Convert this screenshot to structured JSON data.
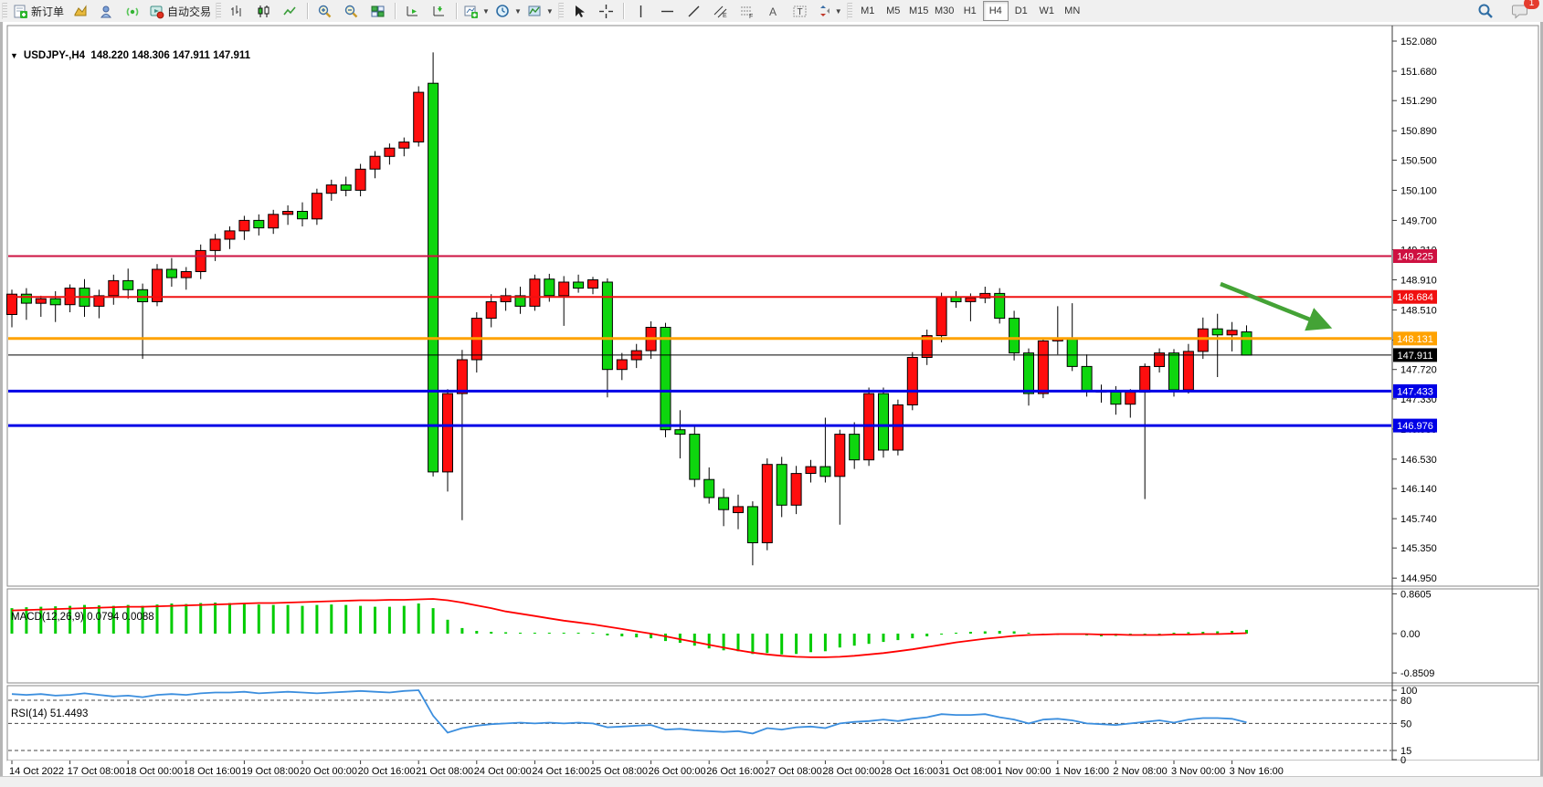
{
  "toolbar": {
    "new_order_label": "新订单",
    "autotrade_label": "自动交易",
    "timeframes": [
      "M1",
      "M5",
      "M15",
      "M30",
      "H1",
      "H4",
      "D1",
      "W1",
      "MN"
    ],
    "active_timeframe": "H4",
    "notification_count": "1"
  },
  "chart": {
    "symbol_period": "USDJPY-,H4",
    "ohlc": "148.220 148.306 147.911 147.911"
  },
  "chart_data": {
    "type": "candlestick",
    "symbol": "USDJPY-",
    "timeframe": "H4",
    "current": {
      "open": 148.22,
      "high": 148.306,
      "low": 147.911,
      "close": 147.911
    },
    "colors": {
      "candle_up": "#FF0E0E",
      "candle_down": "#0ED60E",
      "wick": "#000000",
      "macd_hist": "#00CC00",
      "macd_signal": "#FF0000",
      "rsi_line": "#3B8EDE",
      "arrow": "#44A336"
    },
    "price_axis_ticks": [
      "152.080",
      "151.680",
      "151.290",
      "150.890",
      "150.500",
      "150.100",
      "149.700",
      "149.310",
      "148.910",
      "148.510",
      "148.110",
      "147.720",
      "147.330",
      "146.930",
      "146.530",
      "146.140",
      "145.740",
      "145.350",
      "144.950"
    ],
    "hlines": [
      {
        "price": 149.225,
        "label": "149.225",
        "color": "#CE1141",
        "width": 2
      },
      {
        "price": 148.684,
        "label": "148.684",
        "color": "#F01010",
        "width": 2
      },
      {
        "price": 148.131,
        "label": "148.131",
        "color": "#FFA200",
        "width": 3
      },
      {
        "price": 147.911,
        "label": "147.911",
        "color": "#000000",
        "width": 1
      },
      {
        "price": 147.433,
        "label": "147.433",
        "color": "#0000E6",
        "width": 3
      },
      {
        "price": 146.976,
        "label": "146.976",
        "color": "#0000E6",
        "width": 3
      }
    ],
    "candles": [
      [
        148.45,
        148.78,
        148.28,
        148.72
      ],
      [
        148.72,
        148.8,
        148.38,
        148.6
      ],
      [
        148.6,
        148.7,
        148.42,
        148.66
      ],
      [
        148.66,
        148.76,
        148.35,
        148.58
      ],
      [
        148.58,
        148.85,
        148.48,
        148.8
      ],
      [
        148.8,
        148.92,
        148.42,
        148.56
      ],
      [
        148.56,
        148.78,
        148.4,
        148.7
      ],
      [
        148.7,
        148.98,
        148.58,
        148.9
      ],
      [
        148.9,
        149.06,
        148.66,
        148.78
      ],
      [
        148.78,
        148.86,
        147.86,
        148.62
      ],
      [
        148.62,
        149.12,
        148.56,
        149.05
      ],
      [
        149.05,
        149.2,
        148.82,
        148.94
      ],
      [
        148.94,
        149.08,
        148.78,
        149.02
      ],
      [
        149.02,
        149.38,
        148.92,
        149.3
      ],
      [
        149.3,
        149.52,
        149.16,
        149.45
      ],
      [
        149.45,
        149.62,
        149.32,
        149.56
      ],
      [
        149.56,
        149.76,
        149.44,
        149.7
      ],
      [
        149.7,
        149.78,
        149.5,
        149.6
      ],
      [
        149.6,
        149.84,
        149.52,
        149.78
      ],
      [
        149.78,
        149.9,
        149.64,
        149.82
      ],
      [
        149.82,
        149.94,
        149.62,
        149.72
      ],
      [
        149.72,
        150.12,
        149.64,
        150.06
      ],
      [
        150.06,
        150.24,
        149.96,
        150.17
      ],
      [
        150.17,
        150.28,
        150.02,
        150.1
      ],
      [
        150.1,
        150.45,
        150.02,
        150.38
      ],
      [
        150.38,
        150.62,
        150.26,
        150.55
      ],
      [
        150.55,
        150.72,
        150.44,
        150.66
      ],
      [
        150.66,
        150.8,
        150.55,
        150.74
      ],
      [
        150.74,
        151.48,
        150.68,
        151.4
      ],
      [
        151.52,
        151.93,
        146.3,
        146.36
      ],
      [
        146.36,
        147.46,
        146.1,
        147.4
      ],
      [
        147.4,
        147.98,
        145.72,
        147.85
      ],
      [
        147.85,
        148.48,
        147.68,
        148.4
      ],
      [
        148.4,
        148.72,
        148.28,
        148.62
      ],
      [
        148.62,
        148.8,
        148.5,
        148.7
      ],
      [
        148.7,
        148.82,
        148.46,
        148.56
      ],
      [
        148.56,
        148.98,
        148.5,
        148.92
      ],
      [
        148.92,
        148.99,
        148.62,
        148.7
      ],
      [
        148.7,
        148.96,
        148.3,
        148.88
      ],
      [
        148.88,
        148.98,
        148.74,
        148.8
      ],
      [
        148.8,
        148.95,
        148.72,
        148.91
      ],
      [
        148.88,
        148.93,
        147.35,
        147.72
      ],
      [
        147.72,
        147.94,
        147.58,
        147.85
      ],
      [
        147.85,
        148.06,
        147.74,
        147.97
      ],
      [
        147.97,
        148.36,
        147.86,
        148.28
      ],
      [
        148.28,
        148.34,
        146.82,
        146.92
      ],
      [
        146.92,
        147.18,
        146.54,
        146.86
      ],
      [
        146.86,
        146.96,
        146.16,
        146.26
      ],
      [
        146.26,
        146.42,
        145.94,
        146.02
      ],
      [
        146.02,
        146.14,
        145.64,
        145.86
      ],
      [
        145.82,
        146.06,
        145.6,
        145.9
      ],
      [
        145.9,
        145.97,
        145.12,
        145.42
      ],
      [
        145.42,
        146.54,
        145.32,
        146.46
      ],
      [
        146.46,
        146.56,
        145.76,
        145.92
      ],
      [
        145.92,
        146.44,
        145.8,
        146.34
      ],
      [
        146.34,
        146.52,
        146.22,
        146.43
      ],
      [
        146.43,
        147.08,
        146.22,
        146.3
      ],
      [
        146.3,
        146.92,
        145.66,
        146.86
      ],
      [
        146.86,
        147.02,
        146.4,
        146.52
      ],
      [
        146.52,
        147.48,
        146.44,
        147.4
      ],
      [
        147.4,
        147.48,
        146.55,
        146.65
      ],
      [
        146.65,
        147.32,
        146.58,
        147.25
      ],
      [
        147.25,
        147.95,
        147.18,
        147.88
      ],
      [
        147.88,
        148.25,
        147.78,
        148.17
      ],
      [
        148.17,
        148.74,
        148.08,
        148.68
      ],
      [
        148.68,
        148.76,
        148.54,
        148.62
      ],
      [
        148.62,
        148.73,
        148.36,
        148.67
      ],
      [
        148.67,
        148.82,
        148.6,
        148.73
      ],
      [
        148.73,
        148.8,
        148.33,
        148.4
      ],
      [
        148.4,
        148.5,
        147.84,
        147.94
      ],
      [
        147.94,
        148.0,
        147.24,
        147.4
      ],
      [
        147.4,
        148.14,
        147.34,
        148.1
      ],
      [
        148.1,
        148.56,
        147.92,
        148.14
      ],
      [
        148.14,
        148.6,
        147.7,
        147.76
      ],
      [
        147.76,
        147.92,
        147.36,
        147.44
      ],
      [
        147.44,
        147.52,
        147.28,
        147.42
      ],
      [
        147.42,
        147.5,
        147.12,
        147.26
      ],
      [
        147.26,
        147.46,
        147.08,
        147.42
      ],
      [
        147.42,
        147.8,
        146.0,
        147.76
      ],
      [
        147.76,
        148.0,
        147.68,
        147.94
      ],
      [
        147.94,
        147.99,
        147.36,
        147.45
      ],
      [
        147.45,
        148.06,
        147.4,
        147.96
      ],
      [
        147.96,
        148.41,
        147.86,
        148.26
      ],
      [
        148.26,
        148.46,
        147.62,
        148.18
      ],
      [
        148.18,
        148.35,
        147.96,
        148.24
      ],
      [
        148.22,
        148.306,
        147.911,
        147.911
      ]
    ],
    "time_labels": [
      {
        "i": 0,
        "t": "14 Oct 2022"
      },
      {
        "i": 4,
        "t": "17 Oct 08:00"
      },
      {
        "i": 8,
        "t": "18 Oct 00:00"
      },
      {
        "i": 12,
        "t": "18 Oct 16:00"
      },
      {
        "i": 16,
        "t": "19 Oct 08:00"
      },
      {
        "i": 20,
        "t": "20 Oct 00:00"
      },
      {
        "i": 24,
        "t": "20 Oct 16:00"
      },
      {
        "i": 28,
        "t": "21 Oct 08:00"
      },
      {
        "i": 32,
        "t": "24 Oct 00:00"
      },
      {
        "i": 36,
        "t": "24 Oct 16:00"
      },
      {
        "i": 40,
        "t": "25 Oct 08:00"
      },
      {
        "i": 44,
        "t": "26 Oct 00:00"
      },
      {
        "i": 48,
        "t": "26 Oct 16:00"
      },
      {
        "i": 52,
        "t": "27 Oct 08:00"
      },
      {
        "i": 56,
        "t": "28 Oct 00:00"
      },
      {
        "i": 60,
        "t": "28 Oct 16:00"
      },
      {
        "i": 64,
        "t": "31 Oct 08:00"
      },
      {
        "i": 68,
        "t": "1 Nov 00:00"
      },
      {
        "i": 72,
        "t": "1 Nov 16:00"
      },
      {
        "i": 76,
        "t": "2 Nov 08:00"
      },
      {
        "i": 80,
        "t": "3 Nov 00:00"
      },
      {
        "i": 84,
        "t": "3 Nov 16:00"
      }
    ],
    "arrow": {
      "from_index": 83.2,
      "from_price": 148.85,
      "to_index": 90.6,
      "to_price": 148.29
    },
    "macd": {
      "label": "MACD(12,26,9) 0.0794 0.0088",
      "axis_ticks": [
        "0.8605",
        "0.00",
        "-0.8509"
      ],
      "hist": [
        0.55,
        0.57,
        0.58,
        0.59,
        0.6,
        0.62,
        0.61,
        0.6,
        0.62,
        0.6,
        0.63,
        0.65,
        0.64,
        0.66,
        0.67,
        0.66,
        0.65,
        0.63,
        0.62,
        0.62,
        0.6,
        0.62,
        0.63,
        0.62,
        0.6,
        0.58,
        0.58,
        0.6,
        0.65,
        0.55,
        0.3,
        0.12,
        0.06,
        0.04,
        0.03,
        0.02,
        0.02,
        0.02,
        0.02,
        0.02,
        0.02,
        -0.04,
        -0.06,
        -0.08,
        -0.1,
        -0.16,
        -0.2,
        -0.26,
        -0.32,
        -0.36,
        -0.38,
        -0.44,
        -0.42,
        -0.45,
        -0.44,
        -0.4,
        -0.38,
        -0.3,
        -0.26,
        -0.22,
        -0.18,
        -0.14,
        -0.1,
        -0.06,
        -0.02,
        0.02,
        0.04,
        0.05,
        0.06,
        0.05,
        0.02,
        -0.02,
        -0.03,
        -0.02,
        -0.04,
        -0.06,
        -0.05,
        -0.04,
        -0.03,
        -0.02,
        0.02,
        0.03,
        0.04,
        0.05,
        0.06,
        0.08
      ],
      "signal": [
        0.5,
        0.51,
        0.52,
        0.53,
        0.54,
        0.55,
        0.56,
        0.57,
        0.58,
        0.58,
        0.59,
        0.6,
        0.61,
        0.62,
        0.63,
        0.64,
        0.65,
        0.66,
        0.66,
        0.67,
        0.68,
        0.69,
        0.7,
        0.71,
        0.72,
        0.72,
        0.73,
        0.73,
        0.74,
        0.75,
        0.72,
        0.67,
        0.61,
        0.55,
        0.48,
        0.43,
        0.38,
        0.33,
        0.28,
        0.24,
        0.2,
        0.15,
        0.1,
        0.05,
        0.0,
        -0.06,
        -0.12,
        -0.18,
        -0.24,
        -0.3,
        -0.36,
        -0.41,
        -0.45,
        -0.48,
        -0.5,
        -0.51,
        -0.51,
        -0.5,
        -0.48,
        -0.45,
        -0.42,
        -0.38,
        -0.34,
        -0.29,
        -0.24,
        -0.19,
        -0.15,
        -0.11,
        -0.08,
        -0.05,
        -0.03,
        -0.02,
        -0.01,
        -0.01,
        -0.01,
        -0.02,
        -0.02,
        -0.03,
        -0.03,
        -0.03,
        -0.02,
        -0.02,
        -0.01,
        -0.01,
        0.0,
        0.01
      ]
    },
    "rsi": {
      "label": "RSI(14) 51.4493",
      "axis_ticks": [
        "100",
        "80",
        "50",
        "15",
        "0"
      ],
      "dashed_levels": [
        80,
        50,
        15
      ],
      "values": [
        88,
        87,
        88,
        86,
        87,
        89,
        87,
        85,
        86,
        84,
        87,
        88,
        87,
        89,
        90,
        90,
        91,
        89,
        90,
        91,
        90,
        89,
        90,
        91,
        92,
        91,
        90,
        92,
        93,
        60,
        38,
        44,
        47,
        49,
        50,
        51,
        50,
        51,
        50,
        51,
        50,
        45,
        46,
        47,
        48,
        42,
        43,
        41,
        40,
        39,
        40,
        37,
        44,
        42,
        45,
        46,
        44,
        50,
        52,
        53,
        55,
        53,
        56,
        58,
        62,
        61,
        61,
        62,
        58,
        55,
        50,
        55,
        56,
        54,
        50,
        49,
        48,
        50,
        52,
        54,
        51,
        55,
        57,
        57,
        56,
        51.45
      ]
    }
  }
}
